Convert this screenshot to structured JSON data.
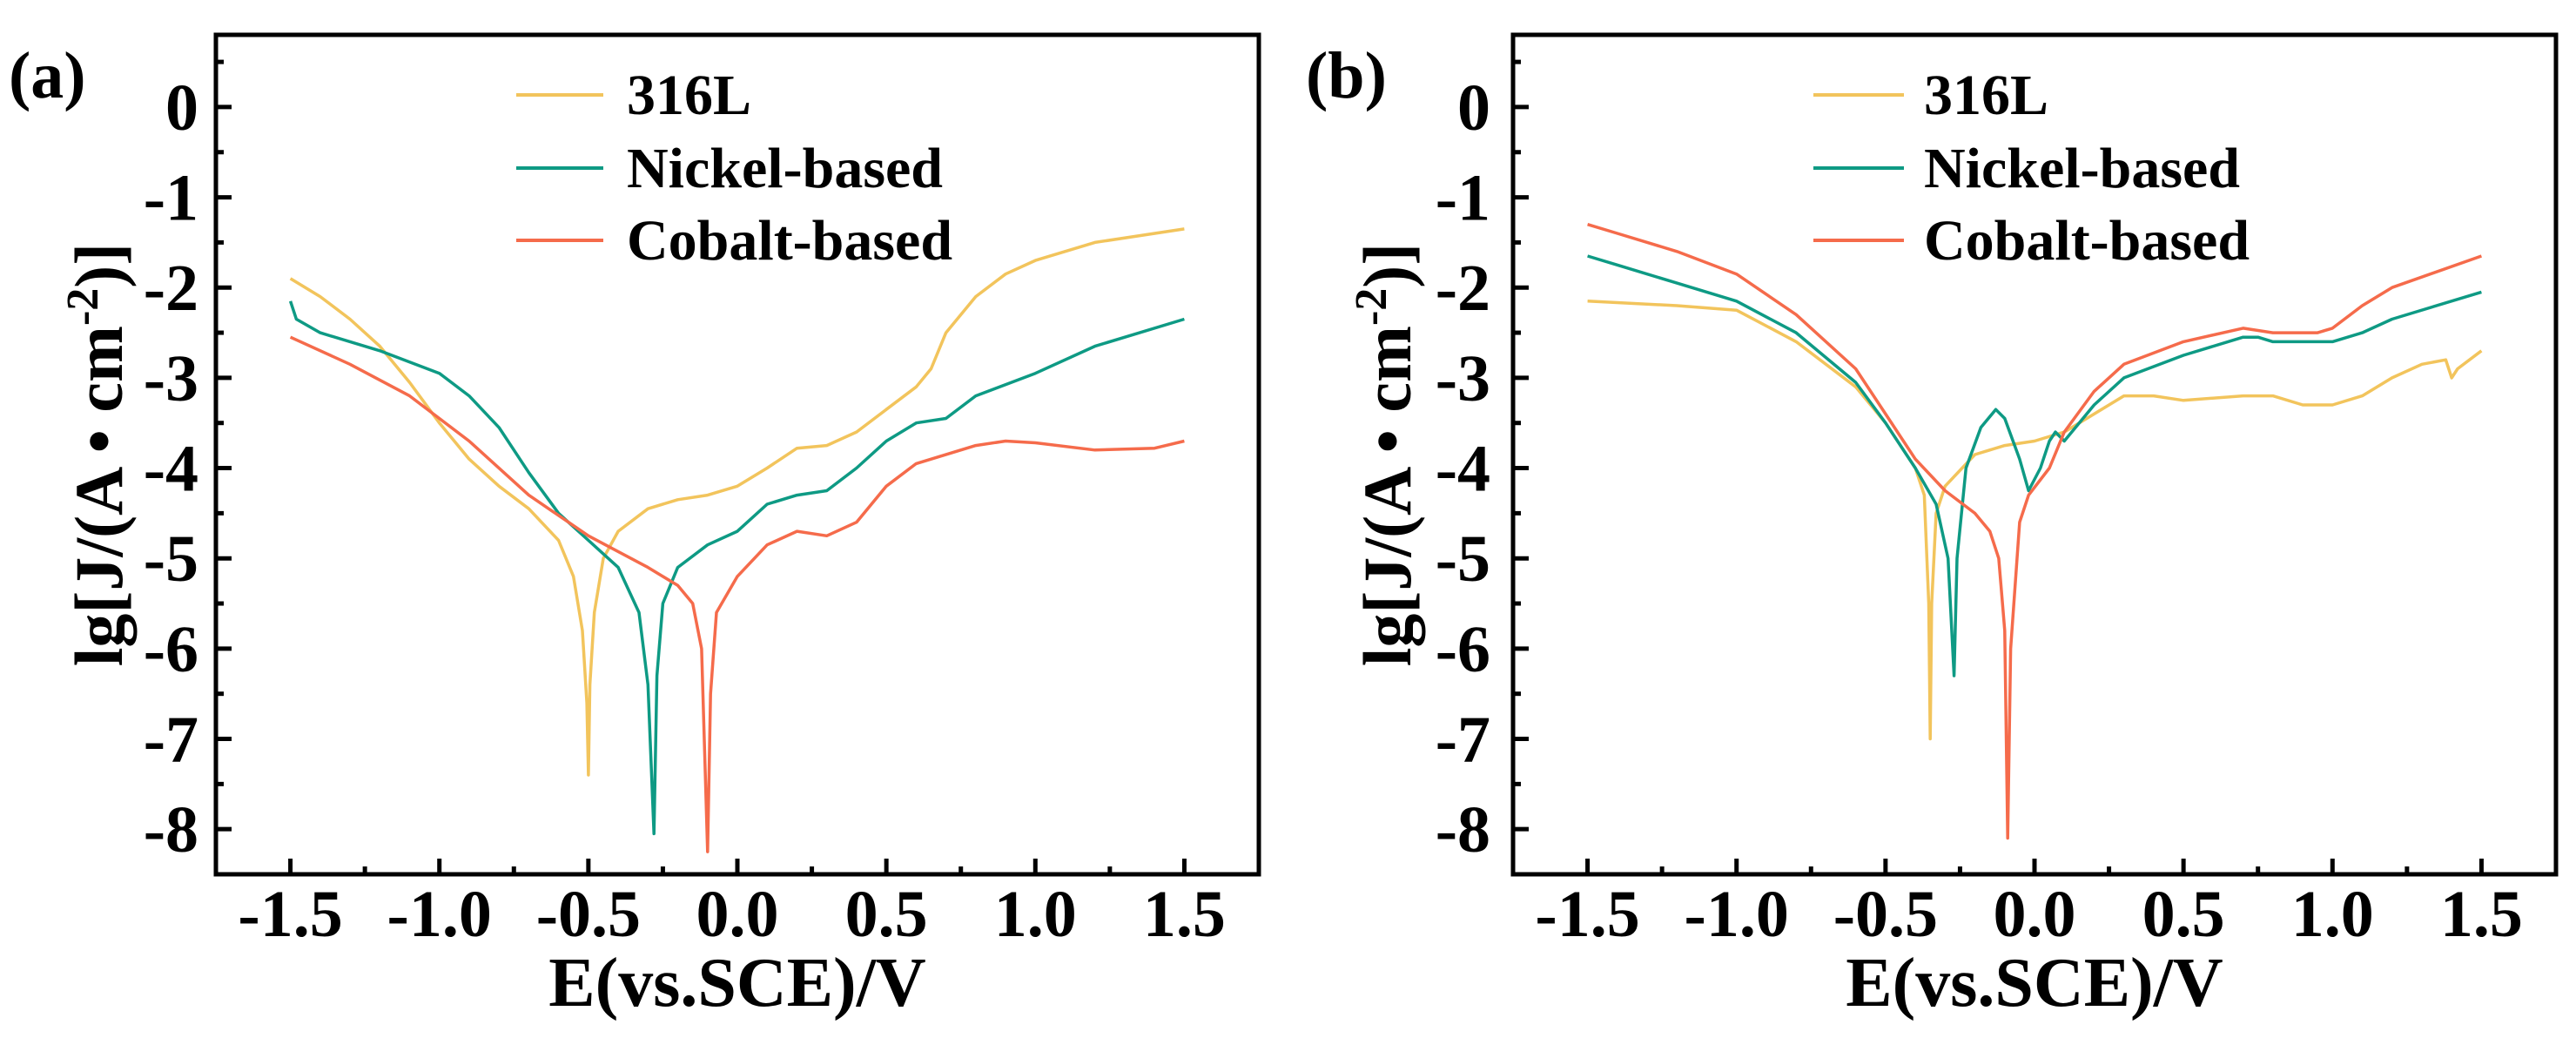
{
  "chart_data": [
    {
      "type": "line",
      "panel_label": "(a)",
      "xlabel": "E(vs.SCE)/V",
      "ylabel": "lg[J/(A · cm-2)]",
      "ylabel_parts": {
        "main": "lg[J/(A • cm",
        "sup": "-2",
        "tail": ")]"
      },
      "xlim": [
        -1.75,
        1.75
      ],
      "ylim": [
        -8.5,
        0.8
      ],
      "xticks": [
        -1.5,
        -1.0,
        -0.5,
        0.0,
        0.5,
        1.0,
        1.5
      ],
      "xtick_labels": [
        "-1.5",
        "-1.0",
        "-0.5",
        "0.0",
        "0.5",
        "1.0",
        "1.5"
      ],
      "yticks": [
        0,
        -1,
        -2,
        -3,
        -4,
        -5,
        -6,
        -7,
        -8
      ],
      "ytick_labels": [
        "0",
        "-1",
        "-2",
        "-3",
        "-4",
        "-5",
        "-6",
        "-7",
        "-8"
      ],
      "grid": false,
      "legend_position": "top-center",
      "series": [
        {
          "name": "316L",
          "color": "#f2c45c",
          "points": [
            [
              -1.5,
              -1.9
            ],
            [
              -1.4,
              -2.1
            ],
            [
              -1.3,
              -2.35
            ],
            [
              -1.2,
              -2.65
            ],
            [
              -1.1,
              -3.05
            ],
            [
              -1.0,
              -3.5
            ],
            [
              -0.9,
              -3.9
            ],
            [
              -0.8,
              -4.2
            ],
            [
              -0.7,
              -4.45
            ],
            [
              -0.6,
              -4.8
            ],
            [
              -0.55,
              -5.2
            ],
            [
              -0.52,
              -5.8
            ],
            [
              -0.505,
              -6.6
            ],
            [
              -0.5,
              -7.4
            ],
            [
              -0.495,
              -6.4
            ],
            [
              -0.48,
              -5.6
            ],
            [
              -0.45,
              -5.0
            ],
            [
              -0.4,
              -4.7
            ],
            [
              -0.3,
              -4.45
            ],
            [
              -0.2,
              -4.35
            ],
            [
              -0.1,
              -4.3
            ],
            [
              0,
              -4.2
            ],
            [
              0.1,
              -4.0
            ],
            [
              0.2,
              -3.78
            ],
            [
              0.3,
              -3.75
            ],
            [
              0.4,
              -3.6
            ],
            [
              0.5,
              -3.35
            ],
            [
              0.6,
              -3.1
            ],
            [
              0.65,
              -2.9
            ],
            [
              0.7,
              -2.5
            ],
            [
              0.8,
              -2.1
            ],
            [
              0.9,
              -1.85
            ],
            [
              1.0,
              -1.7
            ],
            [
              1.2,
              -1.5
            ],
            [
              1.5,
              -1.35
            ]
          ]
        },
        {
          "name": "Nickel-based",
          "color": "#0e9a84",
          "points": [
            [
              -1.5,
              -2.15
            ],
            [
              -1.48,
              -2.35
            ],
            [
              -1.4,
              -2.5
            ],
            [
              -1.2,
              -2.7
            ],
            [
              -1.0,
              -2.95
            ],
            [
              -0.9,
              -3.2
            ],
            [
              -0.8,
              -3.55
            ],
            [
              -0.7,
              -4.05
            ],
            [
              -0.6,
              -4.5
            ],
            [
              -0.5,
              -4.8
            ],
            [
              -0.4,
              -5.1
            ],
            [
              -0.33,
              -5.6
            ],
            [
              -0.3,
              -6.4
            ],
            [
              -0.28,
              -8.05
            ],
            [
              -0.27,
              -6.3
            ],
            [
              -0.25,
              -5.5
            ],
            [
              -0.2,
              -5.1
            ],
            [
              -0.1,
              -4.85
            ],
            [
              0,
              -4.7
            ],
            [
              0.1,
              -4.4
            ],
            [
              0.2,
              -4.3
            ],
            [
              0.3,
              -4.25
            ],
            [
              0.4,
              -4.0
            ],
            [
              0.5,
              -3.7
            ],
            [
              0.6,
              -3.5
            ],
            [
              0.7,
              -3.45
            ],
            [
              0.8,
              -3.2
            ],
            [
              1.0,
              -2.95
            ],
            [
              1.2,
              -2.65
            ],
            [
              1.5,
              -2.35
            ]
          ]
        },
        {
          "name": "Cobalt-based",
          "color": "#f56b4b",
          "points": [
            [
              -1.5,
              -2.55
            ],
            [
              -1.3,
              -2.85
            ],
            [
              -1.1,
              -3.2
            ],
            [
              -0.9,
              -3.7
            ],
            [
              -0.7,
              -4.3
            ],
            [
              -0.5,
              -4.75
            ],
            [
              -0.3,
              -5.1
            ],
            [
              -0.2,
              -5.3
            ],
            [
              -0.15,
              -5.5
            ],
            [
              -0.12,
              -6.0
            ],
            [
              -0.1,
              -8.25
            ],
            [
              -0.09,
              -6.5
            ],
            [
              -0.07,
              -5.6
            ],
            [
              0,
              -5.2
            ],
            [
              0.1,
              -4.85
            ],
            [
              0.2,
              -4.7
            ],
            [
              0.3,
              -4.75
            ],
            [
              0.4,
              -4.6
            ],
            [
              0.5,
              -4.2
            ],
            [
              0.6,
              -3.95
            ],
            [
              0.8,
              -3.75
            ],
            [
              0.9,
              -3.7
            ],
            [
              1.0,
              -3.72
            ],
            [
              1.2,
              -3.8
            ],
            [
              1.4,
              -3.78
            ],
            [
              1.5,
              -3.7
            ]
          ]
        }
      ]
    },
    {
      "type": "line",
      "panel_label": "(b)",
      "xlabel": "E(vs.SCE)/V",
      "ylabel": "lg[J/(A · cm-2)]",
      "ylabel_parts": {
        "main": "lg[J/(A • cm",
        "sup": "-2",
        "tail": ")]"
      },
      "xlim": [
        -1.75,
        1.75
      ],
      "ylim": [
        -8.5,
        0.8
      ],
      "xticks": [
        -1.5,
        -1.0,
        -0.5,
        0.0,
        0.5,
        1.0,
        1.5
      ],
      "xtick_labels": [
        "-1.5",
        "-1.0",
        "-0.5",
        "0.0",
        "0.5",
        "1.0",
        "1.5"
      ],
      "yticks": [
        0,
        -1,
        -2,
        -3,
        -4,
        -5,
        -6,
        -7,
        -8
      ],
      "ytick_labels": [
        "0",
        "-1",
        "-2",
        "-3",
        "-4",
        "-5",
        "-6",
        "-7",
        "-8"
      ],
      "grid": false,
      "legend_position": "top-center",
      "series": [
        {
          "name": "316L",
          "color": "#f2c45c",
          "points": [
            [
              -1.5,
              -2.15
            ],
            [
              -1.2,
              -2.2
            ],
            [
              -1.0,
              -2.25
            ],
            [
              -0.8,
              -2.6
            ],
            [
              -0.6,
              -3.1
            ],
            [
              -0.5,
              -3.5
            ],
            [
              -0.4,
              -4.0
            ],
            [
              -0.37,
              -4.3
            ],
            [
              -0.355,
              -5.5
            ],
            [
              -0.35,
              -7.0
            ],
            [
              -0.345,
              -5.5
            ],
            [
              -0.33,
              -4.5
            ],
            [
              -0.3,
              -4.2
            ],
            [
              -0.2,
              -3.85
            ],
            [
              -0.1,
              -3.75
            ],
            [
              0,
              -3.7
            ],
            [
              0.1,
              -3.6
            ],
            [
              0.2,
              -3.4
            ],
            [
              0.3,
              -3.2
            ],
            [
              0.4,
              -3.2
            ],
            [
              0.5,
              -3.25
            ],
            [
              0.7,
              -3.2
            ],
            [
              0.8,
              -3.2
            ],
            [
              0.9,
              -3.3
            ],
            [
              1.0,
              -3.3
            ],
            [
              1.1,
              -3.2
            ],
            [
              1.2,
              -3.0
            ],
            [
              1.3,
              -2.85
            ],
            [
              1.38,
              -2.8
            ],
            [
              1.4,
              -3.0
            ],
            [
              1.42,
              -2.9
            ],
            [
              1.5,
              -2.7
            ]
          ]
        },
        {
          "name": "Nickel-based",
          "color": "#0e9a84",
          "points": [
            [
              -1.5,
              -1.65
            ],
            [
              -1.4,
              -1.75
            ],
            [
              -1.2,
              -1.95
            ],
            [
              -1.0,
              -2.15
            ],
            [
              -0.8,
              -2.5
            ],
            [
              -0.6,
              -3.05
            ],
            [
              -0.5,
              -3.5
            ],
            [
              -0.4,
              -4.0
            ],
            [
              -0.33,
              -4.4
            ],
            [
              -0.29,
              -5.0
            ],
            [
              -0.27,
              -6.3
            ],
            [
              -0.26,
              -5.0
            ],
            [
              -0.23,
              -4.0
            ],
            [
              -0.18,
              -3.55
            ],
            [
              -0.13,
              -3.35
            ],
            [
              -0.1,
              -3.45
            ],
            [
              -0.05,
              -3.9
            ],
            [
              -0.02,
              -4.25
            ],
            [
              0.02,
              -4.0
            ],
            [
              0.05,
              -3.7
            ],
            [
              0.07,
              -3.6
            ],
            [
              0.1,
              -3.7
            ],
            [
              0.2,
              -3.3
            ],
            [
              0.3,
              -3.0
            ],
            [
              0.5,
              -2.75
            ],
            [
              0.7,
              -2.55
            ],
            [
              0.75,
              -2.55
            ],
            [
              0.8,
              -2.6
            ],
            [
              1.0,
              -2.6
            ],
            [
              1.1,
              -2.5
            ],
            [
              1.2,
              -2.35
            ],
            [
              1.5,
              -2.05
            ]
          ]
        },
        {
          "name": "Cobalt-based",
          "color": "#f56b4b",
          "points": [
            [
              -1.5,
              -1.3
            ],
            [
              -1.4,
              -1.4
            ],
            [
              -1.2,
              -1.6
            ],
            [
              -1.0,
              -1.85
            ],
            [
              -0.8,
              -2.3
            ],
            [
              -0.6,
              -2.9
            ],
            [
              -0.5,
              -3.4
            ],
            [
              -0.4,
              -3.9
            ],
            [
              -0.3,
              -4.25
            ],
            [
              -0.2,
              -4.5
            ],
            [
              -0.15,
              -4.7
            ],
            [
              -0.12,
              -5.0
            ],
            [
              -0.1,
              -5.8
            ],
            [
              -0.09,
              -8.1
            ],
            [
              -0.08,
              -6.0
            ],
            [
              -0.05,
              -4.6
            ],
            [
              -0.02,
              -4.3
            ],
            [
              0.05,
              -4.0
            ],
            [
              0.1,
              -3.6
            ],
            [
              0.2,
              -3.15
            ],
            [
              0.3,
              -2.85
            ],
            [
              0.5,
              -2.6
            ],
            [
              0.7,
              -2.45
            ],
            [
              0.8,
              -2.5
            ],
            [
              0.95,
              -2.5
            ],
            [
              1.0,
              -2.45
            ],
            [
              1.1,
              -2.2
            ],
            [
              1.2,
              -2.0
            ],
            [
              1.5,
              -1.65
            ]
          ]
        }
      ]
    }
  ]
}
